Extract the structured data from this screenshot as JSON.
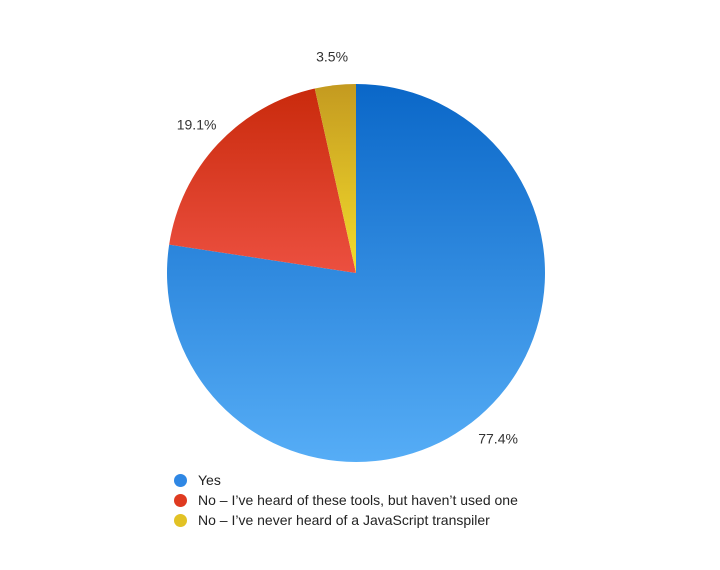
{
  "chart_data": {
    "type": "pie",
    "title": "",
    "categories": [
      "Yes",
      "No – I’ve heard of these tools, but haven’t used one",
      "No – I’ve never heard of a JavaScript transpiler"
    ],
    "values": [
      77.4,
      19.1,
      3.5
    ],
    "value_labels": [
      "77.4%",
      "19.1%",
      "3.5%"
    ],
    "start_angle_deg": 0,
    "direction": "clockwise",
    "legend_position": "bottom-left",
    "colors": [
      {
        "top": "#0a67c8",
        "bottom": "#56adf6"
      },
      {
        "top": "#c92a0c",
        "bottom": "#ec5040"
      },
      {
        "top": "#c49a20",
        "bottom": "#f3dc2c"
      }
    ]
  },
  "legend": {
    "items": [
      {
        "label": "Yes",
        "color": "#2f87e4"
      },
      {
        "label": "No – I’ve heard of these tools, but haven’t used one",
        "color": "#df3a20"
      },
      {
        "label": "No – I’ve never heard of a JavaScript transpiler",
        "color": "#e2c225"
      }
    ]
  }
}
